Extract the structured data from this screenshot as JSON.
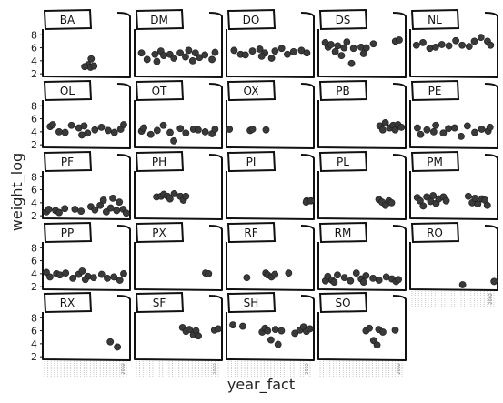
{
  "chart_data": {
    "type": "facet-boxplot-scatter",
    "xlabel": "year_fact",
    "ylabel": "weight_log",
    "ylim": [
      1.6,
      8.6
    ],
    "yticks": [
      2,
      4,
      6,
      8
    ],
    "xlim": [
      1977,
      2002
    ],
    "xtick_label": "2002",
    "panels": [
      {
        "label": "BA",
        "points": [
          [
            1991,
            4.3
          ],
          [
            1990,
            3.4
          ],
          [
            1991,
            3.0
          ],
          [
            1992,
            3.2
          ],
          [
            1989,
            3.1
          ]
        ]
      },
      {
        "label": "DM",
        "points": [
          [
            1978,
            5.2
          ],
          [
            1980,
            4.2
          ],
          [
            1982,
            5.0
          ],
          [
            1984,
            5.5
          ],
          [
            1985,
            4.8
          ],
          [
            1987,
            5.0
          ],
          [
            1988,
            4.4
          ],
          [
            1990,
            5.2
          ],
          [
            1992,
            4.6
          ],
          [
            1994,
            4.0
          ],
          [
            1995,
            5.2
          ],
          [
            1996,
            4.5
          ],
          [
            1998,
            4.9
          ],
          [
            2000,
            4.2
          ],
          [
            2001,
            5.3
          ],
          [
            1983,
            3.9
          ],
          [
            1993,
            5.6
          ]
        ]
      },
      {
        "label": "DO",
        "points": [
          [
            1978,
            5.6
          ],
          [
            1980,
            5.0
          ],
          [
            1982,
            4.9
          ],
          [
            1984,
            5.5
          ],
          [
            1986,
            5.8
          ],
          [
            1988,
            5.2
          ],
          [
            1990,
            4.4
          ],
          [
            1991,
            5.5
          ],
          [
            1993,
            5.9
          ],
          [
            1995,
            5.0
          ],
          [
            1997,
            5.4
          ],
          [
            1999,
            5.6
          ],
          [
            2001,
            5.2
          ],
          [
            1987,
            4.7
          ]
        ]
      },
      {
        "label": "DS",
        "points": [
          [
            1978,
            6.8
          ],
          [
            1979,
            6.1
          ],
          [
            1980,
            6.5
          ],
          [
            1981,
            5.4
          ],
          [
            1982,
            6.3
          ],
          [
            1984,
            6.0
          ],
          [
            1985,
            6.9
          ],
          [
            1986,
            3.6
          ],
          [
            1987,
            5.9
          ],
          [
            1989,
            6.1
          ],
          [
            1990,
            5.1
          ],
          [
            1991,
            6.0
          ],
          [
            1993,
            6.6
          ],
          [
            2000,
            7.0
          ],
          [
            2001,
            7.2
          ],
          [
            1983,
            4.8
          ]
        ]
      },
      {
        "label": "NL",
        "points": [
          [
            1978,
            6.4
          ],
          [
            1980,
            6.8
          ],
          [
            1982,
            5.9
          ],
          [
            1984,
            6.1
          ],
          [
            1986,
            6.5
          ],
          [
            1988,
            6.3
          ],
          [
            1990,
            7.1
          ],
          [
            1992,
            6.4
          ],
          [
            1994,
            6.2
          ],
          [
            1996,
            7.0
          ],
          [
            1998,
            7.6
          ],
          [
            2000,
            7.0
          ],
          [
            2001,
            6.4
          ]
        ]
      },
      {
        "label": "OL",
        "points": [
          [
            1978,
            4.8
          ],
          [
            1979,
            5.1
          ],
          [
            1981,
            4.0
          ],
          [
            1983,
            3.9
          ],
          [
            1985,
            5.0
          ],
          [
            1987,
            4.6
          ],
          [
            1989,
            4.9
          ],
          [
            1990,
            3.8
          ],
          [
            1992,
            4.3
          ],
          [
            1994,
            4.7
          ],
          [
            1996,
            4.2
          ],
          [
            1998,
            3.9
          ],
          [
            2000,
            4.4
          ],
          [
            2001,
            5.1
          ],
          [
            1988,
            3.5
          ]
        ]
      },
      {
        "label": "OT",
        "points": [
          [
            1978,
            4.1
          ],
          [
            1979,
            4.6
          ],
          [
            1981,
            3.6
          ],
          [
            1983,
            4.2
          ],
          [
            1985,
            5.0
          ],
          [
            1987,
            3.9
          ],
          [
            1988,
            2.6
          ],
          [
            1990,
            4.5
          ],
          [
            1992,
            3.8
          ],
          [
            1994,
            4.4
          ],
          [
            1996,
            4.3
          ],
          [
            1998,
            4.0
          ],
          [
            2000,
            3.7
          ],
          [
            2001,
            4.4
          ]
        ]
      },
      {
        "label": "OX",
        "points": [
          [
            1977,
            4.4
          ],
          [
            1983,
            4.2
          ],
          [
            1984,
            4.4
          ],
          [
            1988,
            4.3
          ]
        ]
      },
      {
        "label": "PB",
        "points": [
          [
            1995,
            4.9
          ],
          [
            1996,
            4.3
          ],
          [
            1997,
            5.4
          ],
          [
            1998,
            4.6
          ],
          [
            1999,
            5.0
          ],
          [
            2000,
            4.3
          ],
          [
            2001,
            5.1
          ],
          [
            2002,
            4.7
          ]
        ]
      },
      {
        "label": "PE",
        "points": [
          [
            1978,
            4.6
          ],
          [
            1979,
            3.6
          ],
          [
            1981,
            4.3
          ],
          [
            1983,
            4.0
          ],
          [
            1984,
            5.0
          ],
          [
            1986,
            3.8
          ],
          [
            1988,
            4.5
          ],
          [
            1990,
            4.6
          ],
          [
            1992,
            3.3
          ],
          [
            1994,
            4.9
          ],
          [
            1996,
            3.9
          ],
          [
            1998,
            4.4
          ],
          [
            2000,
            4.1
          ],
          [
            2001,
            4.7
          ]
        ]
      },
      {
        "label": "PF",
        "points": [
          [
            1977,
            2.6
          ],
          [
            1978,
            3.0
          ],
          [
            1980,
            2.8
          ],
          [
            1981,
            2.5
          ],
          [
            1983,
            3.1
          ],
          [
            1986,
            3.0
          ],
          [
            1988,
            2.7
          ],
          [
            1991,
            3.4
          ],
          [
            1992,
            2.9
          ],
          [
            1994,
            3.6
          ],
          [
            1995,
            4.4
          ],
          [
            1996,
            2.6
          ],
          [
            1997,
            3.2
          ],
          [
            1998,
            4.7
          ],
          [
            1999,
            2.8
          ],
          [
            2000,
            4.1
          ],
          [
            2001,
            3.0
          ],
          [
            2002,
            2.4
          ]
        ]
      },
      {
        "label": "PH",
        "points": [
          [
            1983,
            4.9
          ],
          [
            1984,
            5.0
          ],
          [
            1985,
            5.3
          ],
          [
            1986,
            5.0
          ],
          [
            1987,
            4.6
          ],
          [
            1988,
            5.4
          ],
          [
            1990,
            5.0
          ],
          [
            1991,
            4.4
          ],
          [
            1992,
            5.0
          ]
        ]
      },
      {
        "label": "PI",
        "points": [
          [
            2001,
            4.3
          ],
          [
            2001,
            4.1
          ],
          [
            2002,
            4.3
          ]
        ]
      },
      {
        "label": "PL",
        "points": [
          [
            1995,
            4.5
          ],
          [
            1996,
            4.1
          ],
          [
            1997,
            3.6
          ],
          [
            1998,
            4.3
          ],
          [
            1999,
            4.0
          ]
        ]
      },
      {
        "label": "PM",
        "points": [
          [
            1978,
            4.8
          ],
          [
            1979,
            4.3
          ],
          [
            1980,
            3.5
          ],
          [
            1981,
            4.9
          ],
          [
            1982,
            4.2
          ],
          [
            1983,
            5.1
          ],
          [
            1984,
            3.9
          ],
          [
            1985,
            4.6
          ],
          [
            1986,
            4.9
          ],
          [
            1987,
            4.3
          ],
          [
            1994,
            5.0
          ],
          [
            1995,
            4.0
          ],
          [
            1996,
            4.7
          ],
          [
            1997,
            3.8
          ],
          [
            1998,
            4.6
          ],
          [
            1999,
            4.4
          ],
          [
            2000,
            3.6
          ]
        ]
      },
      {
        "label": "PP",
        "points": [
          [
            1977,
            4.2
          ],
          [
            1978,
            3.5
          ],
          [
            1980,
            4.0
          ],
          [
            1981,
            3.8
          ],
          [
            1983,
            4.1
          ],
          [
            1985,
            3.3
          ],
          [
            1987,
            3.9
          ],
          [
            1988,
            4.4
          ],
          [
            1990,
            3.6
          ],
          [
            1992,
            3.4
          ],
          [
            1994,
            3.9
          ],
          [
            1996,
            3.3
          ],
          [
            1998,
            3.5
          ],
          [
            2000,
            3.0
          ],
          [
            2001,
            4.0
          ],
          [
            1989,
            3.1
          ]
        ]
      },
      {
        "label": "PX",
        "points": [
          [
            1998,
            4.1
          ],
          [
            1999,
            4.0
          ]
        ]
      },
      {
        "label": "RF",
        "points": [
          [
            1982,
            3.4
          ],
          [
            1988,
            4.1
          ],
          [
            1989,
            3.8
          ],
          [
            1990,
            3.5
          ],
          [
            1991,
            3.9
          ],
          [
            1995,
            4.1
          ]
        ]
      },
      {
        "label": "RM",
        "points": [
          [
            1978,
            2.9
          ],
          [
            1979,
            3.6
          ],
          [
            1980,
            3.0
          ],
          [
            1981,
            2.7
          ],
          [
            1982,
            3.8
          ],
          [
            1984,
            3.4
          ],
          [
            1986,
            2.9
          ],
          [
            1988,
            4.1
          ],
          [
            1989,
            3.2
          ],
          [
            1990,
            2.7
          ],
          [
            1991,
            3.7
          ],
          [
            1993,
            3.3
          ],
          [
            1995,
            3.0
          ],
          [
            1997,
            3.5
          ],
          [
            1999,
            3.2
          ],
          [
            2000,
            2.8
          ],
          [
            2001,
            3.1
          ]
        ]
      },
      {
        "label": "RO",
        "points": [
          [
            1992,
            2.3
          ],
          [
            2002,
            2.8
          ]
        ]
      },
      {
        "label": "RX",
        "points": [
          [
            1997,
            4.3
          ],
          [
            1999,
            3.5
          ]
        ]
      },
      {
        "label": "SF",
        "points": [
          [
            1991,
            6.5
          ],
          [
            1992,
            5.9
          ],
          [
            1993,
            6.2
          ],
          [
            1994,
            5.4
          ],
          [
            1995,
            6.0
          ],
          [
            1996,
            5.2
          ],
          [
            2001,
            6.1
          ],
          [
            2002,
            6.3
          ]
        ]
      },
      {
        "label": "SH",
        "points": [
          [
            1978,
            6.9
          ],
          [
            1981,
            6.7
          ],
          [
            1987,
            5.8
          ],
          [
            1988,
            6.4
          ],
          [
            1989,
            6.0
          ],
          [
            1990,
            4.6
          ],
          [
            1991,
            6.2
          ],
          [
            1992,
            3.9
          ],
          [
            1993,
            6.0
          ],
          [
            1997,
            5.6
          ],
          [
            1999,
            6.1
          ],
          [
            2000,
            6.6
          ],
          [
            2001,
            5.9
          ],
          [
            2002,
            6.3
          ]
        ]
      },
      {
        "label": "SO",
        "points": [
          [
            1991,
            6.0
          ],
          [
            1992,
            6.4
          ],
          [
            1993,
            4.5
          ],
          [
            1994,
            3.8
          ],
          [
            1995,
            6.2
          ],
          [
            1996,
            5.8
          ],
          [
            2000,
            6.1
          ]
        ]
      }
    ]
  }
}
